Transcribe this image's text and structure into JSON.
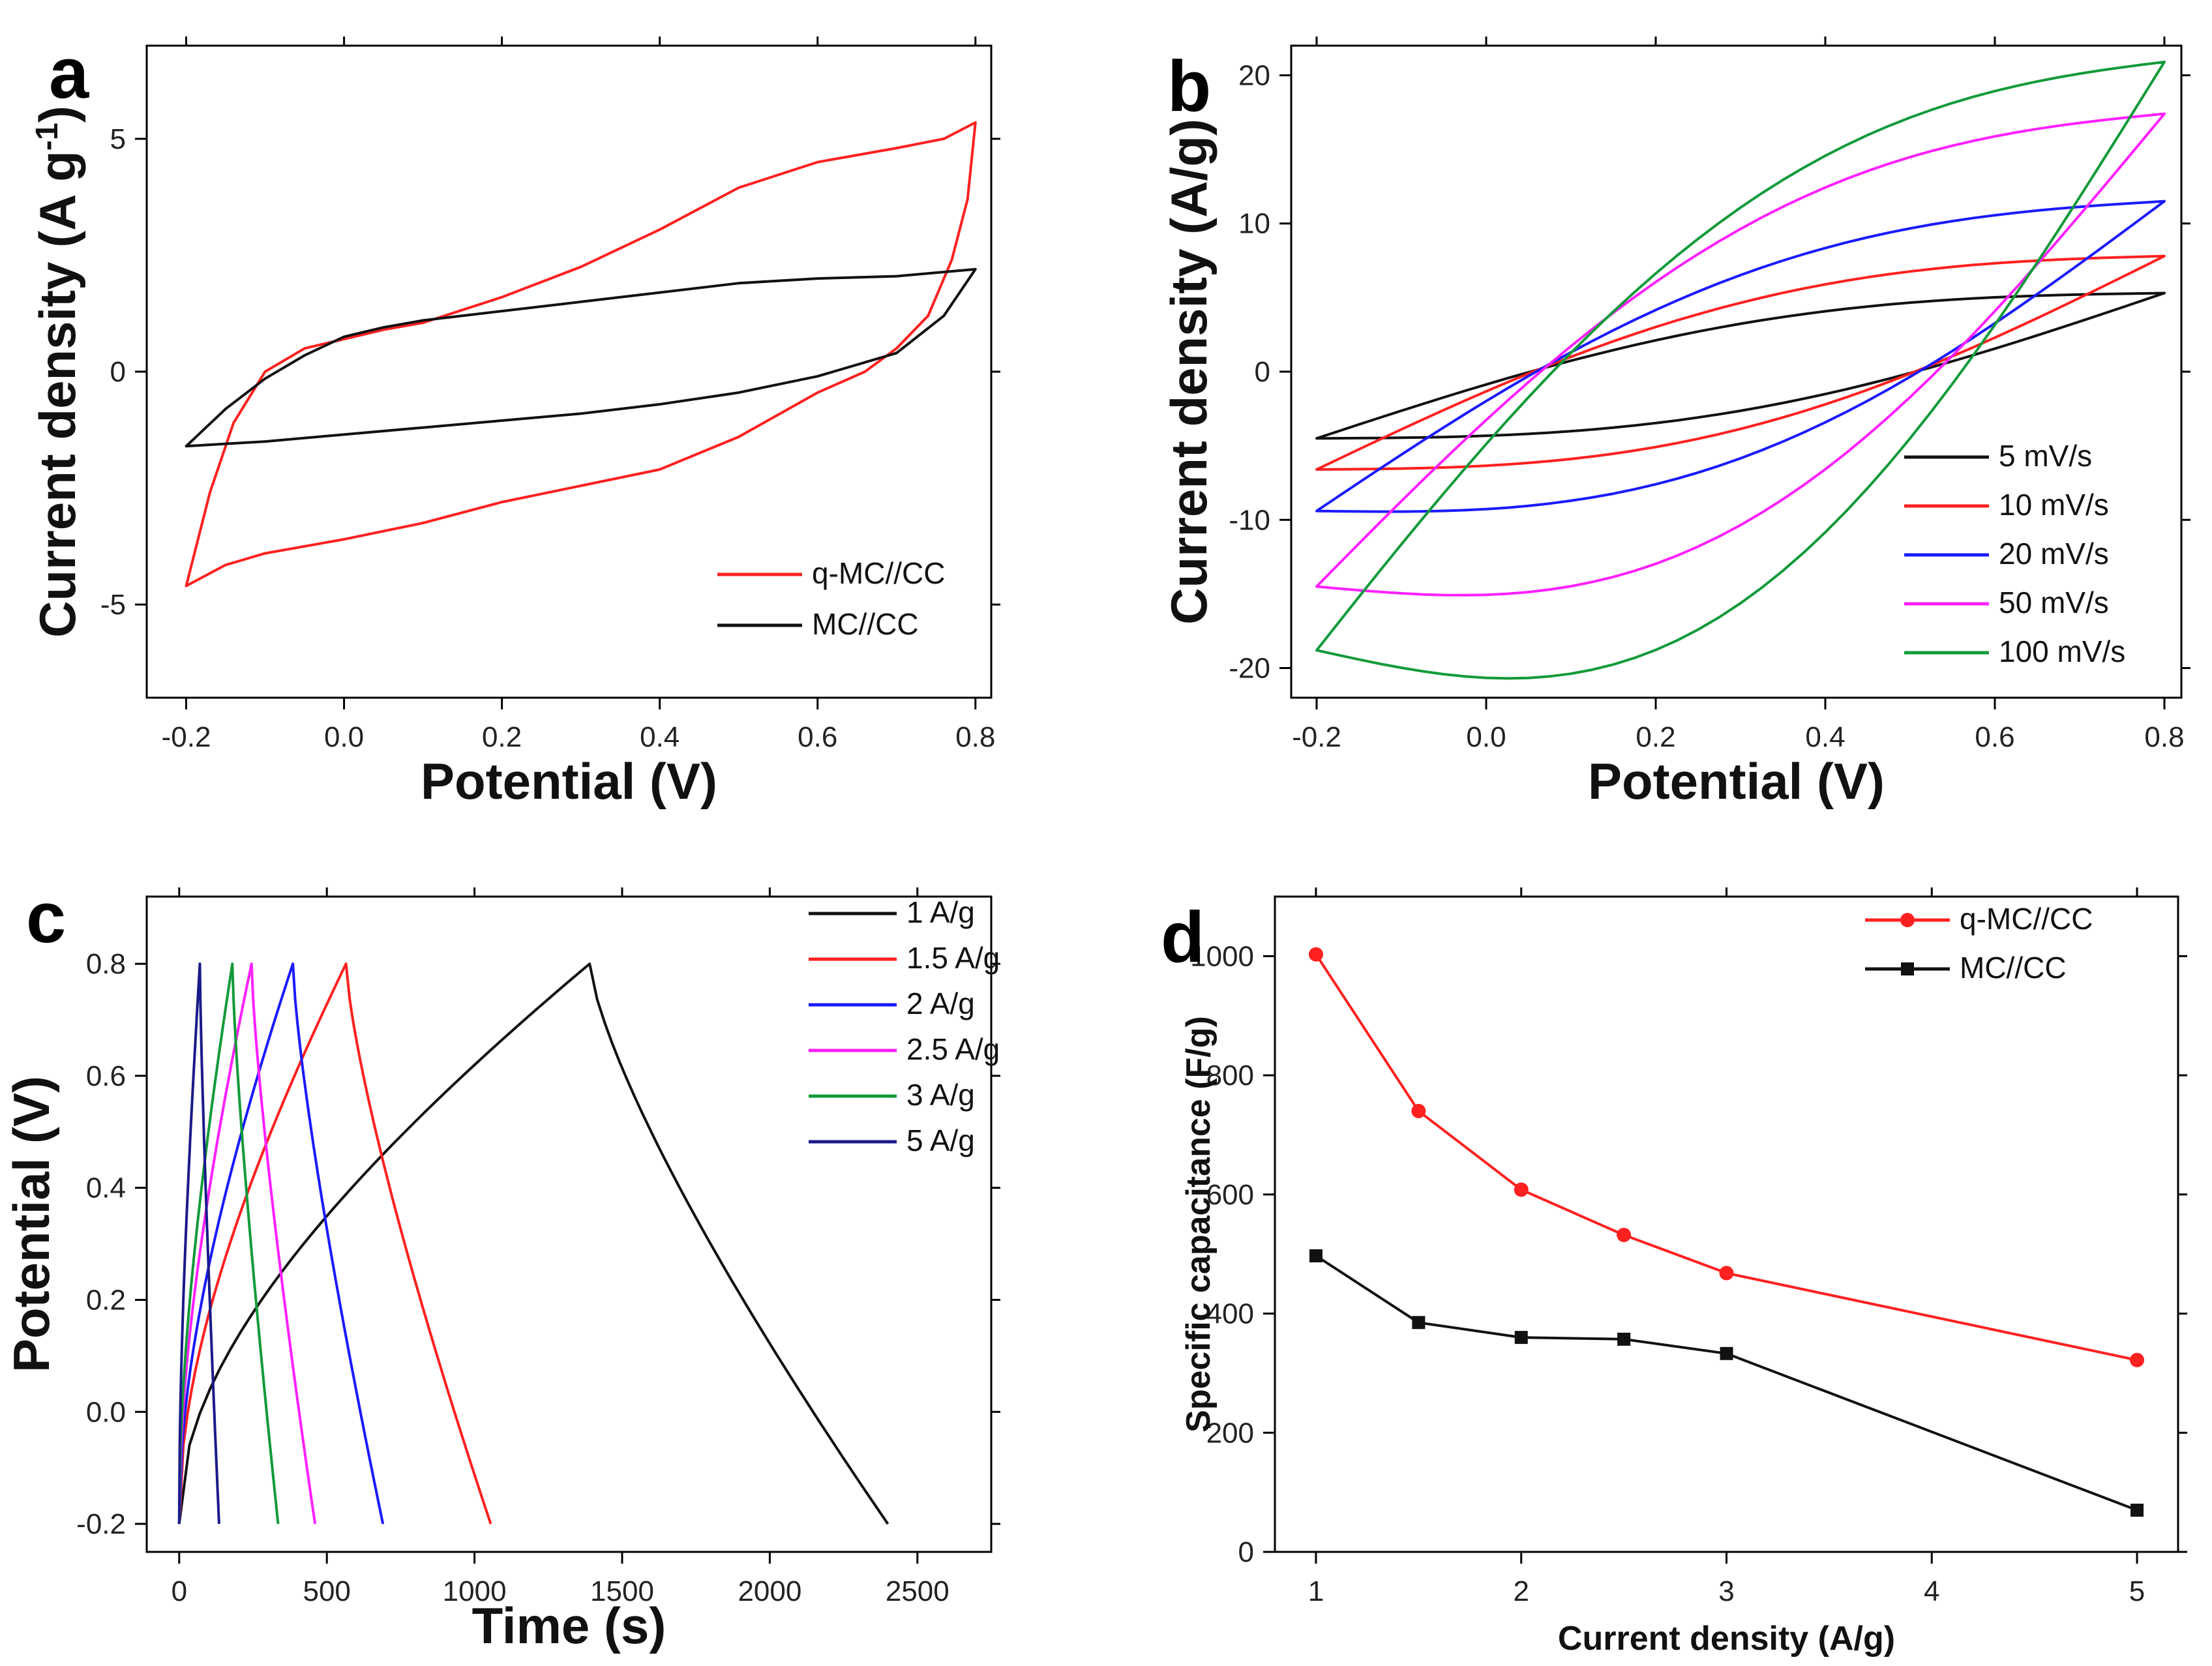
{
  "chart_data": [
    {
      "panel": "a",
      "type": "line",
      "xlabel": "Potential (V)",
      "ylabel": "Current density (A g",
      "ylabel_sup": "-1",
      "ylabel_tail": ")",
      "xlim": [
        -0.25,
        0.82
      ],
      "ylim": [
        -7,
        7
      ],
      "xticks": [
        -0.2,
        0.0,
        0.2,
        0.4,
        0.6,
        0.8
      ],
      "xtick_labels": [
        "-0.2",
        "0.0",
        "0.2",
        "0.4",
        "0.6",
        "0.8"
      ],
      "yticks": [
        -5,
        0,
        5
      ],
      "ytick_labels": [
        "-5",
        "0",
        "5"
      ],
      "legend": [
        "q-MC//CC",
        "MC//CC"
      ],
      "series": [
        {
          "name": "q-MC//CC",
          "color": "#ff2020",
          "x": [
            -0.2,
            -0.17,
            -0.14,
            -0.1,
            -0.05,
            0.0,
            0.05,
            0.1,
            0.2,
            0.3,
            0.4,
            0.5,
            0.6,
            0.7,
            0.76,
            0.8,
            0.79,
            0.77,
            0.74,
            0.7,
            0.66,
            0.6,
            0.5,
            0.4,
            0.3,
            0.2,
            0.1,
            0.0,
            -0.1,
            -0.15,
            -0.2
          ],
          "y": [
            -4.6,
            -2.6,
            -1.1,
            0.0,
            0.5,
            0.7,
            0.9,
            1.05,
            1.6,
            2.25,
            3.05,
            3.95,
            4.5,
            4.8,
            5.0,
            5.35,
            3.7,
            2.4,
            1.2,
            0.5,
            0.0,
            -0.45,
            -1.4,
            -2.1,
            -2.45,
            -2.8,
            -3.25,
            -3.6,
            -3.9,
            -4.15,
            -4.6
          ]
        },
        {
          "name": "MC//CC",
          "color": "#111111",
          "x": [
            -0.2,
            -0.15,
            -0.1,
            -0.05,
            0.0,
            0.05,
            0.1,
            0.2,
            0.3,
            0.4,
            0.5,
            0.6,
            0.7,
            0.8,
            0.76,
            0.7,
            0.6,
            0.5,
            0.4,
            0.3,
            0.2,
            0.1,
            0.0,
            -0.1,
            -0.2
          ],
          "y": [
            -1.6,
            -0.8,
            -0.15,
            0.35,
            0.75,
            0.95,
            1.1,
            1.3,
            1.5,
            1.7,
            1.9,
            2.0,
            2.05,
            2.2,
            1.2,
            0.4,
            -0.1,
            -0.45,
            -0.7,
            -0.9,
            -1.05,
            -1.2,
            -1.35,
            -1.5,
            -1.6
          ]
        }
      ]
    },
    {
      "panel": "b",
      "type": "line",
      "xlabel": "Potential (V)",
      "ylabel": "Current density (A/g)",
      "xlim": [
        -0.23,
        0.82
      ],
      "ylim": [
        -22,
        22
      ],
      "xticks": [
        -0.2,
        0.0,
        0.2,
        0.4,
        0.6,
        0.8
      ],
      "xtick_labels": [
        "-0.2",
        "0.0",
        "0.2",
        "0.4",
        "0.6",
        "0.8"
      ],
      "yticks": [
        -20,
        -10,
        0,
        10,
        20
      ],
      "ytick_labels": [
        "-20",
        "-10",
        "0",
        "10",
        "20"
      ],
      "legend": [
        "5 mV/s",
        "10 mV/s",
        "20 mV/s",
        "50 mV/s",
        "100 mV/s"
      ],
      "series": [
        {
          "name": "5 mV/s",
          "color": "#111111",
          "params": [
            -4.5,
            5.3,
            -3.5,
            0.7,
            0.18
          ]
        },
        {
          "name": "10 mV/s",
          "color": "#ff2020",
          "params": [
            -6.6,
            7.8,
            -5.2,
            0.9,
            0.18
          ]
        },
        {
          "name": "20 mV/s",
          "color": "#1a1aff",
          "params": [
            -9.4,
            11.5,
            -8.0,
            1.2,
            0.22
          ]
        },
        {
          "name": "50 mV/s",
          "color": "#ff20ff",
          "params": [
            -14.5,
            17.4,
            -12.0,
            2.2,
            0.3
          ]
        },
        {
          "name": "100 mV/s",
          "color": "#129a3a",
          "params": [
            -18.8,
            20.9,
            -15.5,
            3.2,
            0.4
          ]
        }
      ]
    },
    {
      "panel": "c",
      "type": "line",
      "xlabel": "Time (s)",
      "ylabel": "Potential (V)",
      "xlim": [
        -110,
        2750
      ],
      "ylim": [
        -0.25,
        0.92
      ],
      "xticks": [
        0,
        500,
        1000,
        1500,
        2000,
        2500
      ],
      "xtick_labels": [
        "0",
        "500",
        "1000",
        "1500",
        "2000",
        "2500"
      ],
      "yticks": [
        -0.2,
        0.0,
        0.2,
        0.4,
        0.6,
        0.8
      ],
      "ytick_labels": [
        "-0.2",
        "0.0",
        "0.2",
        "0.4",
        "0.6",
        "0.8"
      ],
      "legend": [
        "1 A/g",
        "1.5 A/g",
        "2 A/g",
        "2.5 A/g",
        "3 A/g",
        "5 A/g"
      ],
      "series": [
        {
          "name": "1 A/g",
          "color": "#111111",
          "t_peak": 1390,
          "t_end": 2400
        },
        {
          "name": "1.5 A/g",
          "color": "#ff2020",
          "t_peak": 565,
          "t_end": 1055
        },
        {
          "name": "2 A/g",
          "color": "#1a1aff",
          "t_peak": 385,
          "t_end": 690
        },
        {
          "name": "2.5 A/g",
          "color": "#ff20ff",
          "t_peak": 245,
          "t_end": 460
        },
        {
          "name": "3 A/g",
          "color": "#129a3a",
          "t_peak": 180,
          "t_end": 335
        },
        {
          "name": "5 A/g",
          "color": "#1a1a8a",
          "t_peak": 70,
          "t_end": 135
        }
      ]
    },
    {
      "panel": "d",
      "type": "line",
      "xlabel": "Current density (A/g)",
      "ylabel": "Specific capacitance (F/g)",
      "xlim": [
        0.8,
        5.2
      ],
      "ylim": [
        0,
        1100
      ],
      "xticks": [
        1,
        2,
        3,
        4,
        5
      ],
      "xtick_labels": [
        "1",
        "2",
        "3",
        "4",
        "5"
      ],
      "yticks": [
        0,
        200,
        400,
        600,
        800,
        1000
      ],
      "ytick_labels": [
        "0",
        "200",
        "400",
        "600",
        "800",
        "1000"
      ],
      "legend": [
        "q-MC//CC",
        "MC//CC"
      ],
      "series": [
        {
          "name": "q-MC//CC",
          "color": "#ff2020",
          "marker": "circle",
          "x": [
            1,
            1.5,
            2,
            2.5,
            3,
            5
          ],
          "y": [
            1003,
            740,
            608,
            532,
            468,
            322
          ]
        },
        {
          "name": "MC//CC",
          "color": "#111111",
          "marker": "square",
          "x": [
            1,
            1.5,
            2,
            2.5,
            3,
            5
          ],
          "y": [
            497,
            385,
            360,
            357,
            333,
            70
          ]
        }
      ]
    }
  ]
}
